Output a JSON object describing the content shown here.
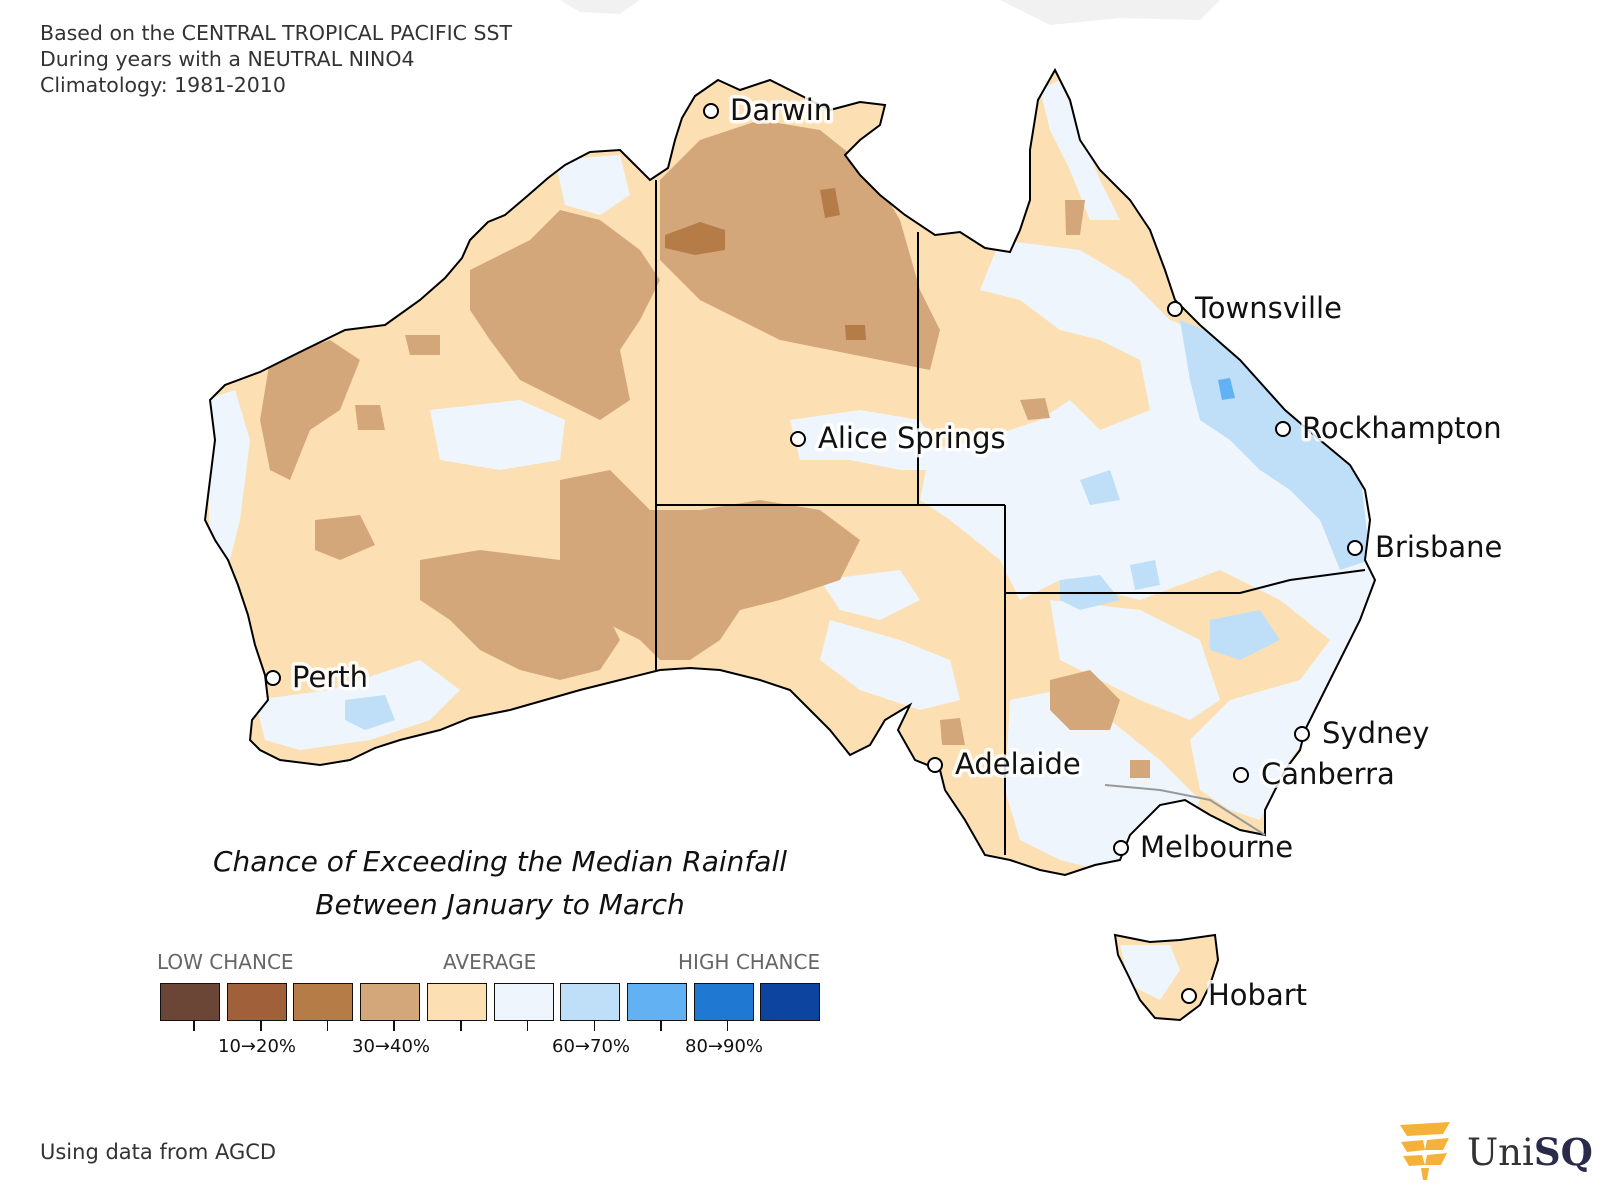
{
  "notes": {
    "line1": "Based on the CENTRAL TROPICAL PACIFIC SST",
    "line2": "During years with a NEUTRAL NINO4",
    "line3": "Climatology: 1981-2010"
  },
  "map": {
    "cities": [
      {
        "name": "Darwin"
      },
      {
        "name": "Townsville"
      },
      {
        "name": "Alice Springs"
      },
      {
        "name": "Rockhampton"
      },
      {
        "name": "Brisbane"
      },
      {
        "name": "Perth"
      },
      {
        "name": "Sydney"
      },
      {
        "name": "Adelaide"
      },
      {
        "name": "Canberra"
      },
      {
        "name": "Melbourne"
      },
      {
        "name": "Hobart"
      }
    ]
  },
  "title": {
    "line1": "Chance of Exceeding the Median Rainfall",
    "line2": "Between January to March"
  },
  "legend": {
    "low_label": "LOW CHANCE",
    "mid_label": "AVERAGE",
    "high_label": "HIGH CHANCE",
    "colors": [
      "#6b4535",
      "#a0603a",
      "#b57c48",
      "#d4a77a",
      "#fce0b4",
      "#eef5fc",
      "#bfdff9",
      "#62b1f2",
      "#1f78d2",
      "#0c44a0"
    ],
    "tick_labels": [
      "10→20%",
      "30→40%",
      "60→70%",
      "80→90%"
    ]
  },
  "source": "Using data from AGCD",
  "logo": {
    "text_light": "Uni",
    "text_bold": "SQ"
  }
}
